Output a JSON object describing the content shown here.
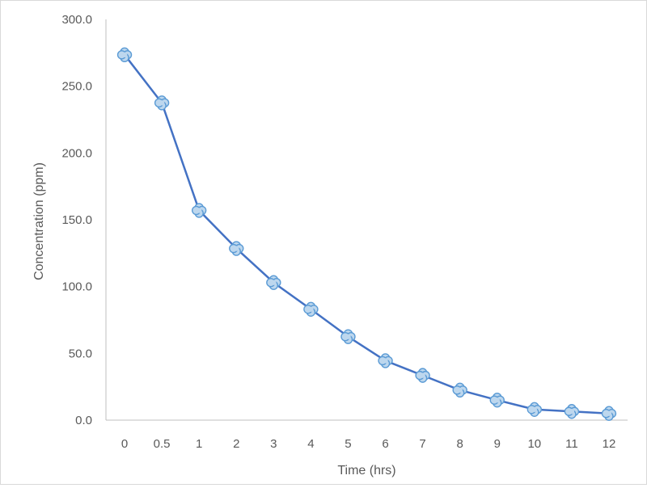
{
  "chart_data": {
    "type": "line",
    "title": "",
    "xlabel": "Time (hrs)",
    "ylabel": "Concentration (ppm)",
    "categories": [
      "0",
      "0.5",
      "1",
      "2",
      "3",
      "4",
      "5",
      "6",
      "7",
      "8",
      "9",
      "10",
      "11",
      "12"
    ],
    "series": [
      {
        "values": [
          273.5,
          237.5,
          157.0,
          128.5,
          103.0,
          83.0,
          62.5,
          44.5,
          33.5,
          22.5,
          15.0,
          8.0,
          6.5,
          5.0
        ]
      }
    ],
    "y_ticks": [
      "0.0",
      "50.0",
      "100.0",
      "150.0",
      "200.0",
      "250.0",
      "300.0"
    ],
    "ylim": [
      0,
      300
    ],
    "grid": false,
    "legend": "none",
    "colors": {
      "line": "#4472c4",
      "marker_fill": "#bdd7ee",
      "marker_stroke": "#5b9bd5",
      "axis": "#bfbfbf",
      "text": "#595959"
    }
  }
}
